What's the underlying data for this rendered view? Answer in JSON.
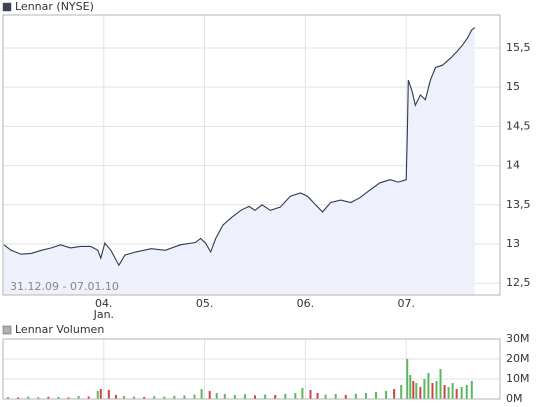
{
  "chart_data": [
    {
      "type": "line",
      "title": "Lennar (NYSE)",
      "annotation": "31.12.09 - 07.01.10",
      "color": "#2e3a50",
      "fill": "#eef0fb",
      "legend_color": "#3a4352",
      "x": [
        0.01,
        0.08,
        0.18,
        0.28,
        0.38,
        0.48,
        0.57,
        0.67,
        0.77,
        0.87,
        0.94,
        0.97,
        1.01,
        1.07,
        1.15,
        1.21,
        1.32,
        1.47,
        1.61,
        1.76,
        1.91,
        1.96,
        2.01,
        2.06,
        2.11,
        2.18,
        2.26,
        2.36,
        2.44,
        2.5,
        2.57,
        2.65,
        2.75,
        2.85,
        2.95,
        3.02,
        3.1,
        3.17,
        3.25,
        3.35,
        3.45,
        3.54,
        3.64,
        3.74,
        3.84,
        3.92,
        4.0,
        4.01,
        4.02,
        4.06,
        4.09,
        4.14,
        4.19,
        4.24,
        4.29,
        4.36,
        4.44,
        4.5,
        4.56,
        4.61,
        4.65,
        4.68
      ],
      "values": [
        12.99,
        12.92,
        12.87,
        12.88,
        12.92,
        12.95,
        12.99,
        12.95,
        12.97,
        12.97,
        12.92,
        12.82,
        13.01,
        12.92,
        12.73,
        12.86,
        12.9,
        12.94,
        12.92,
        12.99,
        13.02,
        13.07,
        13.01,
        12.9,
        13.07,
        13.24,
        13.33,
        13.43,
        13.48,
        13.43,
        13.5,
        13.43,
        13.47,
        13.61,
        13.65,
        13.61,
        13.5,
        13.41,
        13.53,
        13.56,
        13.53,
        13.59,
        13.69,
        13.78,
        13.82,
        13.79,
        13.82,
        14.39,
        15.09,
        14.94,
        14.77,
        14.9,
        14.84,
        15.09,
        15.25,
        15.28,
        15.37,
        15.45,
        15.54,
        15.63,
        15.73,
        15.76
      ],
      "xlim": [
        0,
        4.93
      ],
      "xticks": [
        {
          "value": 1,
          "label": "04."
        },
        {
          "value": 2,
          "label": "05."
        },
        {
          "value": 3,
          "label": "06."
        },
        {
          "value": 4,
          "label": "07."
        }
      ],
      "month_label": "Jan.",
      "ylim": [
        12.35,
        15.92
      ],
      "yticks": [
        {
          "value": 12.5,
          "label": "12,5"
        },
        13,
        {
          "value": 13.5,
          "label": "13,5"
        },
        14,
        {
          "value": 14.5,
          "label": "14,5"
        },
        15,
        {
          "value": 15.5,
          "label": "15,5"
        }
      ],
      "grid": true
    },
    {
      "type": "bar",
      "title": "Lennar Volumen",
      "legend_color": "#b0b0b0",
      "x": [
        0.05,
        0.15,
        0.25,
        0.35,
        0.45,
        0.55,
        0.65,
        0.75,
        0.85,
        0.94,
        0.97,
        1.05,
        1.12,
        1.2,
        1.3,
        1.4,
        1.5,
        1.6,
        1.7,
        1.8,
        1.9,
        1.97,
        2.05,
        2.12,
        2.2,
        2.3,
        2.4,
        2.5,
        2.6,
        2.7,
        2.8,
        2.9,
        2.97,
        3.05,
        3.12,
        3.2,
        3.3,
        3.4,
        3.5,
        3.6,
        3.7,
        3.8,
        3.88,
        3.95,
        4.01,
        4.04,
        4.07,
        4.1,
        4.14,
        4.18,
        4.22,
        4.26,
        4.3,
        4.34,
        4.38,
        4.42,
        4.46,
        4.5,
        4.55,
        4.6,
        4.65
      ],
      "values": [
        1000000,
        800000,
        1200000,
        900000,
        1100000,
        1000000,
        800000,
        1500000,
        1300000,
        4000000,
        5000000,
        4500000,
        2000000,
        1500000,
        1200000,
        1000000,
        1400000,
        1200000,
        1600000,
        1800000,
        2200000,
        5000000,
        4000000,
        3000000,
        2500000,
        2000000,
        2400000,
        1800000,
        2200000,
        2000000,
        2600000,
        3000000,
        5500000,
        4500000,
        3000000,
        2200000,
        2500000,
        2000000,
        2600000,
        3000000,
        3500000,
        4000000,
        5000000,
        7000000,
        20000000,
        12000000,
        9000000,
        8000000,
        6000000,
        10000000,
        13000000,
        8000000,
        9000000,
        15000000,
        7000000,
        6000000,
        8000000,
        5000000,
        6000000,
        7000000,
        9000000
      ],
      "colors": [
        "#5cb85c",
        "#cc4444",
        "#5cb85c",
        "#5cb85c",
        "#cc4444",
        "#5cb85c",
        "#cc4444",
        "#5cb85c",
        "#cc4444",
        "#5cb85c",
        "#cc4444",
        "#cc4444",
        "#cc4444",
        "#5cb85c",
        "#5cb85c",
        "#cc4444",
        "#5cb85c",
        "#5cb85c",
        "#5cb85c",
        "#5cb85c",
        "#5cb85c",
        "#5cb85c",
        "#cc4444",
        "#5cb85c",
        "#5cb85c",
        "#5cb85c",
        "#5cb85c",
        "#cc4444",
        "#5cb85c",
        "#cc4444",
        "#5cb85c",
        "#5cb85c",
        "#5cb85c",
        "#cc4444",
        "#cc4444",
        "#5cb85c",
        "#5cb85c",
        "#cc4444",
        "#5cb85c",
        "#5cb85c",
        "#5cb85c",
        "#5cb85c",
        "#cc4444",
        "#5cb85c",
        "#5cb85c",
        "#5cb85c",
        "#cc4444",
        "#5cb85c",
        "#cc4444",
        "#5cb85c",
        "#5cb85c",
        "#cc4444",
        "#5cb85c",
        "#5cb85c",
        "#cc4444",
        "#5cb85c",
        "#5cb85c",
        "#cc4444",
        "#5cb85c",
        "#5cb85c",
        "#5cb85c"
      ],
      "xlim": [
        0,
        4.93
      ],
      "ylim": [
        0,
        30000000
      ],
      "yticks": [
        {
          "value": 0,
          "label": "0M"
        },
        {
          "value": 10000000,
          "label": "10M"
        },
        {
          "value": 20000000,
          "label": "20M"
        },
        {
          "value": 30000000,
          "label": "30M"
        }
      ],
      "grid": true
    }
  ]
}
